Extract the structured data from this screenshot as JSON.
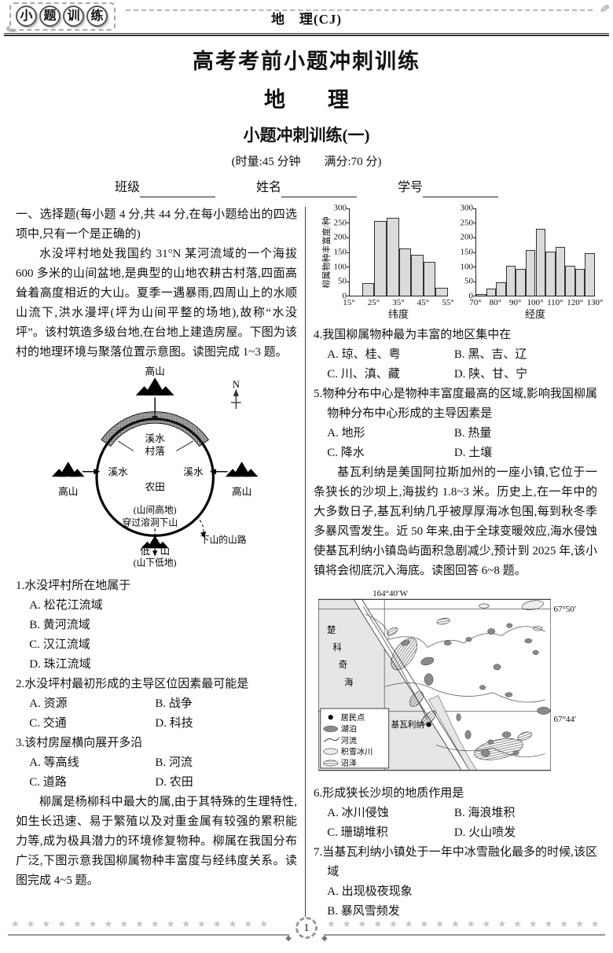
{
  "header": {
    "logo_chars": [
      "小",
      "题",
      "训",
      "练"
    ],
    "subject_label": "地　理(CJ)"
  },
  "title": {
    "line1": "高考考前小题冲刺训练",
    "line2": "地　　理",
    "line3": "小题冲刺训练(一)",
    "meta": "(时量:45 分钟　　满分:70 分)",
    "fields": [
      "班级",
      "姓名",
      "学号"
    ]
  },
  "left_column": {
    "section_heading": "一、选择题(每小题 4 分,共 44 分,在每小题给出的四选项中,只有一个是正确的)",
    "intro": "水没坪村地处我国约 31°N 某河流域的一个海拔 600 多米的山间盆地,是典型的山地农耕古村落,四面高耸着高度相近的大山。夏季一遇暴雨,四周山上的水顺山流下,洪水漫坪(坪为山间平整的场地),故称“水没坪”。该村筑造多级台地,在台地上建造房屋。下图为该村的地理环境与聚落位置示意图。读图完成 1~3 题。",
    "diagram": {
      "north": "N",
      "mountain_top": "高山",
      "mountain_left": "高山",
      "mountain_right": "高山",
      "stream_top": "溪水",
      "village": "村落",
      "stream_left": "溪水",
      "stream_right": "溪水",
      "farmland": "农田",
      "highland": "(山间高地)",
      "cave_note": "穿过溶洞下山",
      "downhill_path": "下山的山路",
      "low_mountain": "低　山",
      "lowland": "(山下低地)"
    },
    "q1": {
      "num": "1.",
      "stem": "水没坪村所在地属于",
      "options": [
        "A. 松花江流域",
        "B. 黄河流域",
        "C. 汉江流域",
        "D. 珠江流域"
      ]
    },
    "q2": {
      "num": "2.",
      "stem": "水没坪村最初形成的主导区位因素最可能是",
      "options": [
        "A. 资源",
        "B. 战争",
        "C. 交通",
        "D. 科技"
      ]
    },
    "q3": {
      "num": "3.",
      "stem": "该村房屋横向展开多沿",
      "options": [
        "A. 等高线",
        "B. 河流",
        "C. 道路",
        "D. 农田"
      ]
    },
    "willow_intro": "柳属是杨柳科中最大的属,由于其特殊的生理特性,如生长迅速、易于繁殖以及对重金属有较强的累积能力等,成为极具潜力的环境修复物种。柳属在我国分布广泛,下图示意我国柳属物种丰富度与经纬度关系。读图完成 4~5 题。"
  },
  "chart_data": [
    {
      "type": "bar",
      "title": "",
      "ylabel": "柳属物种丰富度/种",
      "xlabel": "纬度",
      "ylim": [
        0,
        300
      ],
      "y_tick_step": 50,
      "x_range": [
        15,
        55
      ],
      "x_ticks": [
        "15°",
        "25°",
        "35°",
        "45°",
        "55°"
      ],
      "bins": [
        [
          20,
          25,
          42
        ],
        [
          25,
          30,
          257
        ],
        [
          30,
          35,
          267
        ],
        [
          35,
          40,
          163
        ],
        [
          40,
          45,
          140
        ],
        [
          45,
          50,
          117
        ],
        [
          50,
          55,
          27
        ]
      ]
    },
    {
      "type": "bar",
      "title": "",
      "ylabel": "",
      "xlabel": "经度",
      "ylim": [
        0,
        300
      ],
      "y_tick_step": 50,
      "x_range": [
        70,
        130
      ],
      "x_ticks": [
        "70°",
        "80°",
        "90°",
        "100°",
        "110°",
        "120°",
        "130°"
      ],
      "bins": [
        [
          70,
          75,
          5
        ],
        [
          75,
          80,
          25
        ],
        [
          80,
          85,
          45
        ],
        [
          85,
          90,
          103
        ],
        [
          90,
          95,
          92
        ],
        [
          95,
          100,
          156
        ],
        [
          100,
          105,
          230
        ],
        [
          105,
          110,
          152
        ],
        [
          110,
          115,
          167
        ],
        [
          115,
          120,
          103
        ],
        [
          120,
          125,
          93
        ],
        [
          125,
          130,
          145
        ]
      ]
    }
  ],
  "right_column": {
    "q4": {
      "num": "4.",
      "stem": "我国柳属物种最为丰富的地区集中在",
      "options": [
        "A. 琼、桂、粤",
        "B. 黑、吉、辽",
        "C. 川、滇、藏",
        "D. 陕、甘、宁"
      ]
    },
    "q5": {
      "num": "5.",
      "stem": "物种分布中心是物种丰富度最高的区域,影响我国柳属物种分布中心形成的主导因素是",
      "options": [
        "A. 地形",
        "B. 热量",
        "C. 降水",
        "D. 土壤"
      ]
    },
    "kivalina_intro": "基瓦利纳是美国阿拉斯加州的一座小镇,它位于一条狭长的沙坝上,海拔约 1.8~3 米。历史上,在一年中的大多数日子,基瓦利纳几乎被厚厚海冰包围,每到秋冬季多暴风雪发生。近 50 年来,由于全球变暖效应,海水侵蚀使基瓦利纳小镇岛屿面积急剧减少,预计到 2025 年,该小镇将会彻底沉入海底。读图回答 6~8 题。",
    "map": {
      "top_longitude": "164°40′W",
      "lat_labels": [
        "67°50′",
        "67°44′"
      ],
      "sea_chars": [
        "楚",
        "科",
        "奇",
        "海"
      ],
      "town": "基瓦利纳",
      "legend": [
        "居民点",
        "湖泊",
        "河流",
        "积雪冰川",
        "沼泽"
      ]
    },
    "q6": {
      "num": "6.",
      "stem": "形成狭长沙坝的地质作用是",
      "options": [
        "A. 冰川侵蚀",
        "B. 海浪堆积",
        "C. 珊瑚堆积",
        "D. 火山喷发"
      ]
    },
    "q7": {
      "num": "7.",
      "stem": "当基瓦利纳小镇处于一年中冰雪融化最多的时候,该区域",
      "options": [
        "A. 出现极夜现象",
        "B. 暴风雪频发"
      ]
    }
  },
  "footer": {
    "page": "1"
  }
}
